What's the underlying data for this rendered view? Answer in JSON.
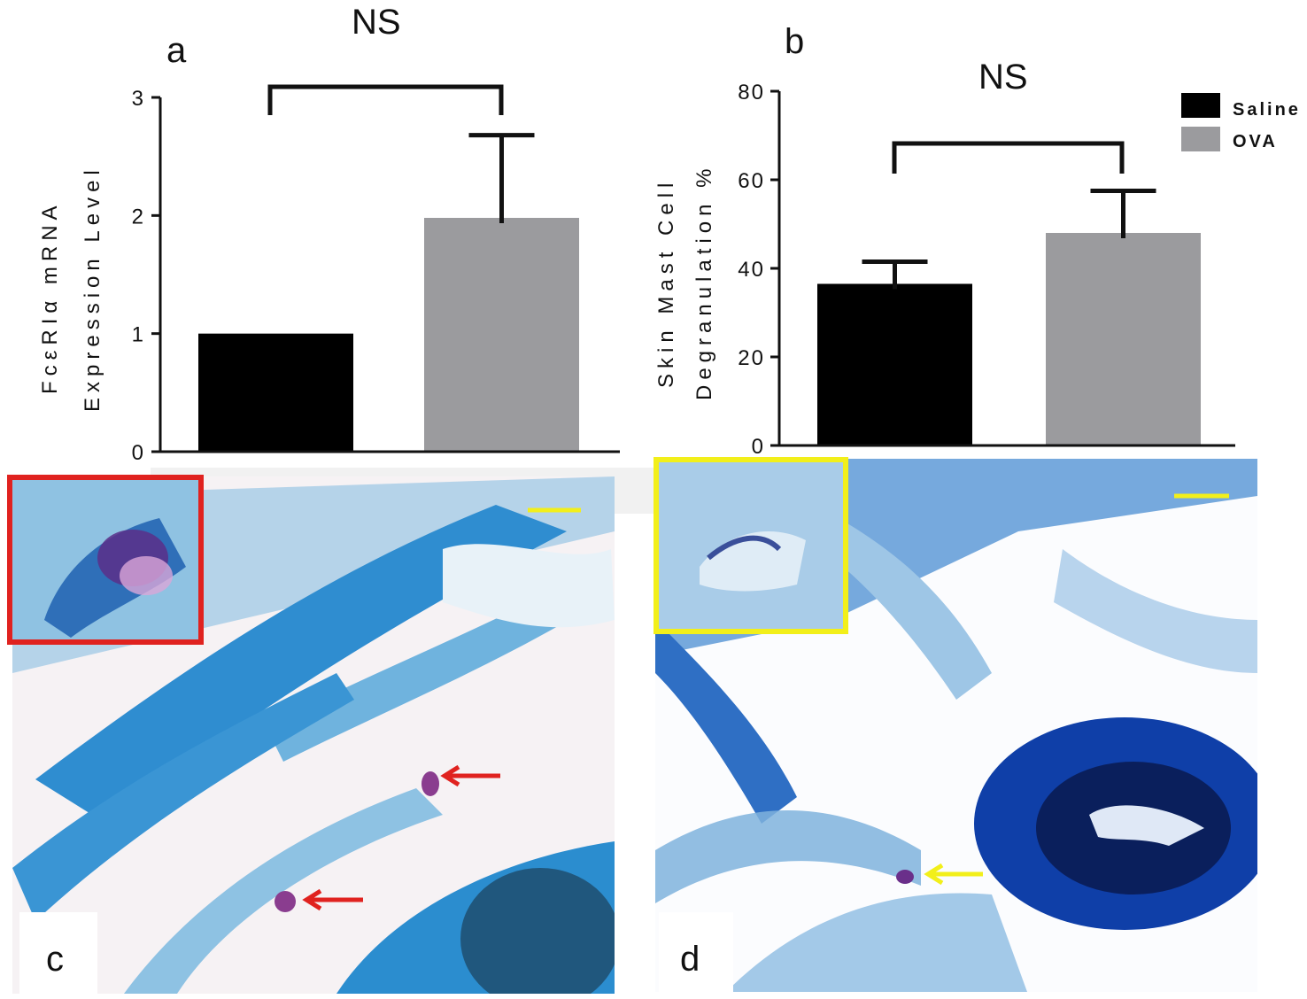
{
  "panels": {
    "a": "a",
    "b": "b",
    "c": "c",
    "d": "d"
  },
  "legend": [
    {
      "label": "Saline",
      "color": "#000000"
    },
    {
      "label": "OVA",
      "color": "#9b9b9e"
    }
  ],
  "chart_data": [
    {
      "type": "bar",
      "panel": "a",
      "categories": [
        "Saline",
        "OVA"
      ],
      "values": [
        1.0,
        1.98
      ],
      "error": [
        0,
        0.7
      ],
      "colors": [
        "#000000",
        "#9b9b9e"
      ],
      "ylabel_line1": "FcεRIα mRNA",
      "ylabel_line2": "Expression Level",
      "ylim": [
        0,
        3
      ],
      "yticks": [
        "0",
        "1",
        "2",
        "3"
      ],
      "significance": "NS"
    },
    {
      "type": "bar",
      "panel": "b",
      "categories": [
        "Saline",
        "OVA"
      ],
      "values": [
        36.5,
        48
      ],
      "error": [
        5,
        9.5
      ],
      "colors": [
        "#000000",
        "#9b9b9e"
      ],
      "ylabel_line1": "Skin Mast Cell",
      "ylabel_line2": "Degranulation %",
      "ylim": [
        0,
        80
      ],
      "yticks": [
        "0",
        "20",
        "40",
        "60",
        "80"
      ],
      "significance": "NS"
    }
  ],
  "images": {
    "c_inset_color": "#e0221f",
    "d_inset_color": "#f2ef1a",
    "scale_bar_color": "#f2ef1a",
    "c_arrow_color": "#e0221f",
    "d_arrow_color": "#f2ef1a"
  }
}
